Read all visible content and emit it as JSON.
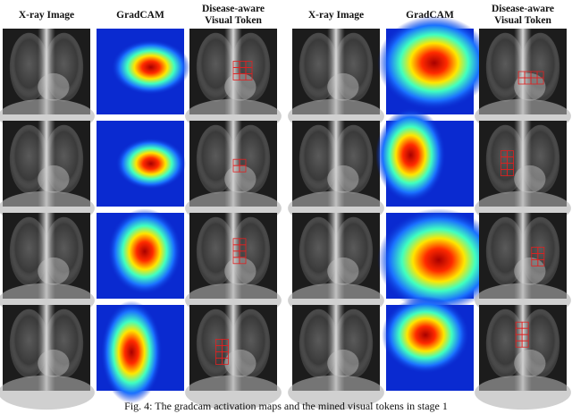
{
  "panels": [
    {
      "headers": [
        "X-ray Image",
        "GradCAM",
        [
          "Disease-aware",
          "Visual Token"
        ]
      ]
    },
    {
      "headers": [
        "X-ray Image",
        "GradCAM",
        [
          "Disease-aware",
          "Visual Token"
        ]
      ]
    }
  ],
  "caption": "Fig. 4: The gradcam activation maps and the mined visual tokens in stage 1"
}
